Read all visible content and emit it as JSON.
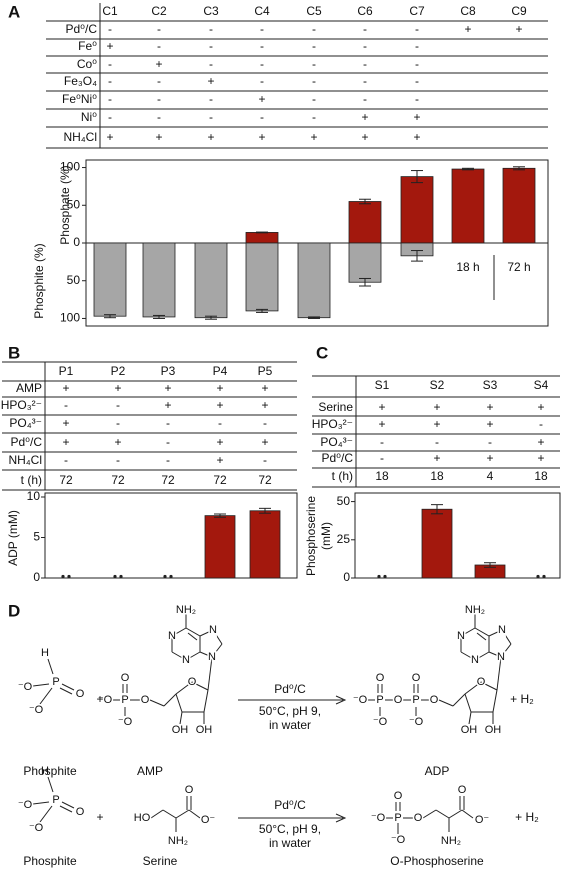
{
  "panel_labels": [
    "A",
    "B",
    "C",
    "D"
  ],
  "table_a": {
    "columns": [
      "C1",
      "C2",
      "C3",
      "C4",
      "C5",
      "C6",
      "C7",
      "C8",
      "C9"
    ],
    "rows": [
      {
        "label": "Pd⁰/C",
        "cells": [
          "-",
          "-",
          "-",
          "-",
          "-",
          "-",
          "-",
          "+",
          "+"
        ]
      },
      {
        "label": "Fe⁰",
        "cells": [
          "+",
          "-",
          "-",
          "-",
          "-",
          "-",
          "-",
          null,
          null
        ]
      },
      {
        "label": "Co⁰",
        "cells": [
          "-",
          "+",
          "-",
          "-",
          "-",
          "-",
          "-",
          null,
          null
        ]
      },
      {
        "label": "Fe₃O₄",
        "cells": [
          "-",
          "-",
          "+",
          "-",
          "-",
          "-",
          "-",
          null,
          null
        ]
      },
      {
        "label": "Fe⁰Ni⁰",
        "cells": [
          "-",
          "-",
          "-",
          "+",
          "-",
          "-",
          "-",
          null,
          null
        ]
      },
      {
        "label": "Ni⁰",
        "cells": [
          "-",
          "-",
          "-",
          "-",
          "-",
          "+",
          "+",
          null,
          null
        ]
      },
      {
        "label": "NH₄Cl",
        "cells": [
          "+",
          "+",
          "+",
          "+",
          "+",
          "+",
          "+",
          null,
          null
        ]
      }
    ]
  },
  "table_b": {
    "columns": [
      "P1",
      "P2",
      "P3",
      "P4",
      "P5"
    ],
    "rows": [
      {
        "label": "AMP",
        "cells": [
          "+",
          "+",
          "+",
          "+",
          "+"
        ]
      },
      {
        "label": "HPO₃²⁻",
        "cells": [
          "-",
          "-",
          "+",
          "+",
          "+"
        ]
      },
      {
        "label": "PO₄³⁻",
        "cells": [
          "+",
          "-",
          "-",
          "-",
          "-"
        ]
      },
      {
        "label": "Pd⁰/C",
        "cells": [
          "+",
          "+",
          "-",
          "+",
          "+"
        ]
      },
      {
        "label": "NH₄Cl",
        "cells": [
          "-",
          "-",
          "-",
          "+",
          "-"
        ]
      },
      {
        "label": "t (h)",
        "cells": [
          "72",
          "72",
          "72",
          "72",
          "72"
        ]
      }
    ]
  },
  "table_c": {
    "columns": [
      "S1",
      "S2",
      "S3",
      "S4"
    ],
    "rows": [
      {
        "label": "Serine",
        "cells": [
          "+",
          "+",
          "+",
          "+"
        ]
      },
      {
        "label": "HPO₃²⁻",
        "cells": [
          "+",
          "+",
          "+",
          "-"
        ]
      },
      {
        "label": "PO₄³⁻",
        "cells": [
          "-",
          "-",
          "-",
          "+"
        ]
      },
      {
        "label": "Pd⁰/C",
        "cells": [
          "-",
          "+",
          "+",
          "+"
        ]
      },
      {
        "label": "t (h)",
        "cells": [
          "18",
          "18",
          "4",
          "18"
        ]
      }
    ]
  },
  "chart_data": [
    {
      "type": "bar",
      "ylabel_top": "Phosphate (%)",
      "ylabel_bottom": "Phosphite (%)",
      "ylim": [
        -110,
        110
      ],
      "yticks": [
        {
          "value": -100,
          "label": "100"
        },
        {
          "value": -50,
          "label": "50"
        },
        0,
        50,
        100
      ],
      "series": [
        {
          "color": "#a3180d",
          "values": [
            null,
            null,
            null,
            14,
            null,
            55,
            88,
            98,
            99
          ],
          "errors": [
            null,
            null,
            null,
            0.5,
            null,
            3,
            8,
            1,
            2
          ]
        },
        {
          "color": "#a6a6a6",
          "values": [
            -97,
            -98,
            -99,
            -90,
            -99,
            -52,
            -17,
            null,
            null
          ],
          "errors": [
            2,
            2,
            2,
            2,
            1,
            5,
            7,
            null,
            null
          ]
        }
      ],
      "annotations": [
        "18 h",
        "72 h"
      ]
    },
    {
      "type": "bar",
      "ylabel": "ADP (mM)",
      "ylim": [
        0,
        10
      ],
      "yticks": [
        0,
        5,
        10
      ],
      "color": "#a3180d",
      "values": [
        0,
        0,
        0,
        7.7,
        8.3
      ],
      "errors": [
        null,
        null,
        null,
        0.2,
        0.3
      ]
    },
    {
      "type": "bar",
      "ylabel": [
        "Phosphoserine",
        "(mM)"
      ],
      "ylim": [
        0,
        53
      ],
      "yticks": [
        0,
        25,
        50
      ],
      "color": "#a3180d",
      "values": [
        0,
        45,
        8.5,
        0
      ],
      "errors": [
        null,
        3,
        1.5,
        null
      ]
    }
  ],
  "scheme": {
    "reaction_1": {
      "phosphite": {
        "atoms": [
          "H",
          "P",
          "O",
          "⁻O",
          "⁻O"
        ],
        "name": "Phosphite"
      },
      "plus": "+",
      "amp": {
        "phosphate_atoms": [
          "⁻O",
          "P",
          "O",
          "⁻O",
          "O"
        ],
        "nucleoside_atoms": [
          "NH₂",
          "N",
          "N",
          "N",
          "N",
          "O",
          "OH",
          "OH"
        ],
        "name": "AMP"
      },
      "conditions": [
        "Pd⁰/C",
        "50°C, pH 9,",
        "in water"
      ],
      "adp": {
        "phosphate_atoms": [
          "⁻O",
          "P",
          "O",
          "⁻O",
          "O",
          "P",
          "O",
          "⁻O",
          "O"
        ],
        "nucleoside_atoms": [
          "NH₂",
          "N",
          "N",
          "N",
          "N",
          "O",
          "OH",
          "OH"
        ],
        "name": "ADP"
      },
      "byproduct": "+  H₂"
    },
    "reaction_2": {
      "phosphite": {
        "atoms": [
          "H",
          "P",
          "O",
          "⁻O",
          "⁻O"
        ],
        "name": "Phosphite"
      },
      "plus": "+",
      "serine": {
        "atoms": [
          "O",
          "O⁻",
          "HO",
          "NH₂"
        ],
        "name": "Serine"
      },
      "conditions": [
        "Pd⁰/C",
        "50°C, pH 9,",
        "in water"
      ],
      "phosphoserine": {
        "atoms": [
          "⁻O",
          "P",
          "O",
          "⁻O",
          "O",
          "O",
          "O⁻",
          "NH₂"
        ],
        "name": "O-Phosphoserine"
      },
      "byproduct": "+  H₂"
    }
  }
}
